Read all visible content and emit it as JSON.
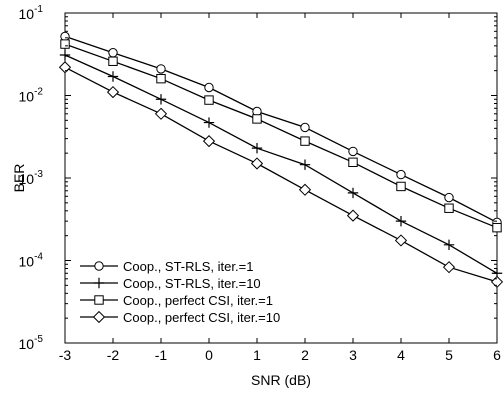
{
  "chart_data": {
    "type": "line",
    "title": "",
    "xlabel": "SNR (dB)",
    "ylabel": "BER",
    "xlim": [
      -3,
      6
    ],
    "ylim": [
      1e-05,
      0.1
    ],
    "yscale": "log",
    "grid": false,
    "legend_position": "lower-left",
    "x_ticks": [
      -3,
      -2,
      -1,
      0,
      1,
      2,
      3,
      4,
      5,
      6
    ],
    "x_tick_labels": [
      "-3",
      "-2",
      "-1",
      "0",
      "1",
      "2",
      "3",
      "4",
      "5",
      "6"
    ],
    "y_ticks": [
      {
        "value": 1e-05,
        "base": "10",
        "exp": "-5"
      },
      {
        "value": 0.0001,
        "base": "10",
        "exp": "-4"
      },
      {
        "value": 0.001,
        "base": "10",
        "exp": "-3"
      },
      {
        "value": 0.01,
        "base": "10",
        "exp": "-2"
      },
      {
        "value": 0.1,
        "base": "10",
        "exp": "-1"
      }
    ],
    "x": [
      -3,
      -2,
      -1,
      0,
      1,
      2,
      3,
      4,
      5,
      6
    ],
    "series": [
      {
        "name": "Coop., ST-RLS, iter.=1",
        "marker": "circle",
        "values": [
          0.052,
          0.033,
          0.021,
          0.0125,
          0.0064,
          0.0041,
          0.0021,
          0.0011,
          0.00058,
          0.00029
        ]
      },
      {
        "name": "Coop., ST-RLS, iter.=10",
        "marker": "plus",
        "values": [
          0.031,
          0.017,
          0.009,
          0.0047,
          0.0023,
          0.00145,
          0.00066,
          0.0003,
          0.000155,
          7e-05
        ]
      },
      {
        "name": "Coop., perfect CSI, iter.=1",
        "marker": "square",
        "values": [
          0.042,
          0.026,
          0.016,
          0.0088,
          0.0052,
          0.0028,
          0.00155,
          0.00079,
          0.00043,
          0.00025
        ]
      },
      {
        "name": "Coop., perfect CSI, iter.=10",
        "marker": "diamond",
        "values": [
          0.022,
          0.011,
          0.006,
          0.0028,
          0.0015,
          0.00072,
          0.00035,
          0.000175,
          8.3e-05,
          5.5e-05
        ]
      }
    ]
  }
}
